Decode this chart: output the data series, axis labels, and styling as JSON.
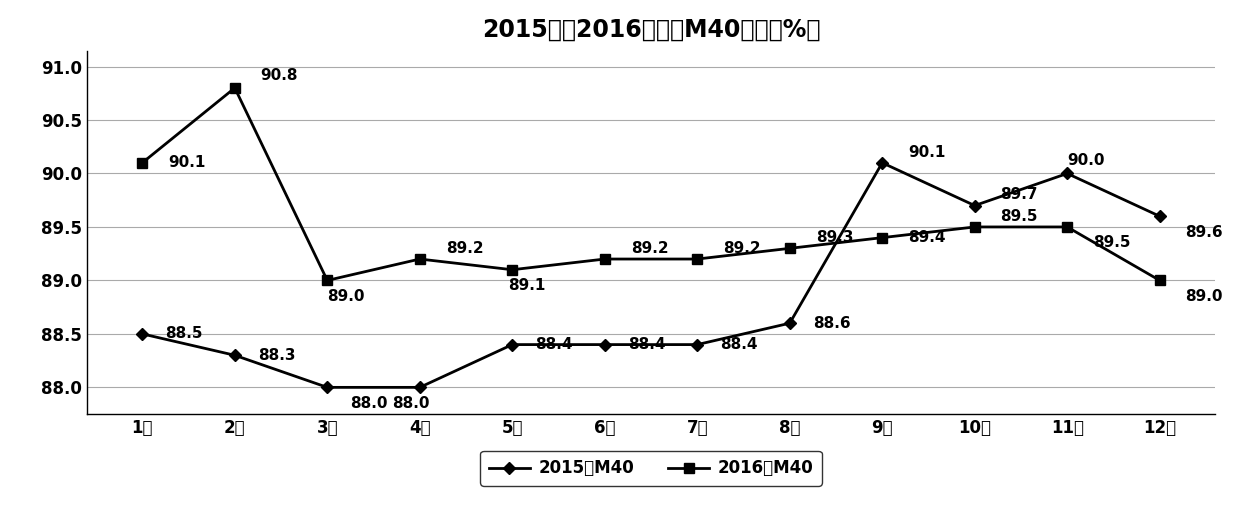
{
  "title": "2015年及2016年焦炭M40对比（%）",
  "months": [
    "1月",
    "2月",
    "3月",
    "4月",
    "5月",
    "6月",
    "7月",
    "8月",
    "9月",
    "10月",
    "11月",
    "12月"
  ],
  "series_2015": [
    88.5,
    88.3,
    88.0,
    88.0,
    88.4,
    88.4,
    88.4,
    88.6,
    90.1,
    89.7,
    90.0,
    89.6
  ],
  "series_2016": [
    90.1,
    90.8,
    89.0,
    89.2,
    89.1,
    89.2,
    89.2,
    89.3,
    89.4,
    89.5,
    89.5,
    89.0
  ],
  "legend_2015": "2015年M40",
  "legend_2016": "2016年M40",
  "ylim_min": 87.75,
  "ylim_max": 91.15,
  "yticks": [
    88.0,
    88.5,
    89.0,
    89.5,
    90.0,
    90.5,
    91.0
  ],
  "ytick_labels": [
    "88.0",
    "88.5",
    "89.0",
    "89.5",
    "90.0",
    "90.5",
    "91.0"
  ],
  "background_color": "#ffffff",
  "line_color": "#000000",
  "grid_color": "#aaaaaa",
  "title_fontsize": 17,
  "tick_fontsize": 12,
  "annotation_fontsize": 11,
  "legend_fontsize": 12,
  "annot_2015": [
    "88.5",
    "88.3",
    "88.0",
    "88.0",
    "88.4",
    "88.4",
    "88.4",
    "88.6",
    "90.1",
    "89.7",
    "90.0",
    "89.6"
  ],
  "annot_2016": [
    "90.1",
    "90.8",
    "89.0",
    "89.2",
    "89.1",
    "89.2",
    "89.2",
    "89.3",
    "89.4",
    "89.5",
    "89.5",
    "89.0"
  ],
  "annot_2015_dx": [
    0.25,
    0.25,
    0.25,
    -0.3,
    0.25,
    0.25,
    0.25,
    0.25,
    0.28,
    0.28,
    0.0,
    0.28
  ],
  "annot_2015_dy": [
    0.0,
    0.0,
    -0.15,
    -0.15,
    0.0,
    0.0,
    0.0,
    0.0,
    0.1,
    0.1,
    0.12,
    -0.15
  ],
  "annot_2016_dx": [
    0.28,
    0.28,
    0.0,
    0.28,
    -0.05,
    0.28,
    0.28,
    0.28,
    0.28,
    0.28,
    0.28,
    0.28
  ],
  "annot_2016_dy": [
    0.0,
    0.12,
    -0.15,
    0.1,
    -0.15,
    0.1,
    0.1,
    0.1,
    0.0,
    0.1,
    -0.15,
    -0.15
  ]
}
